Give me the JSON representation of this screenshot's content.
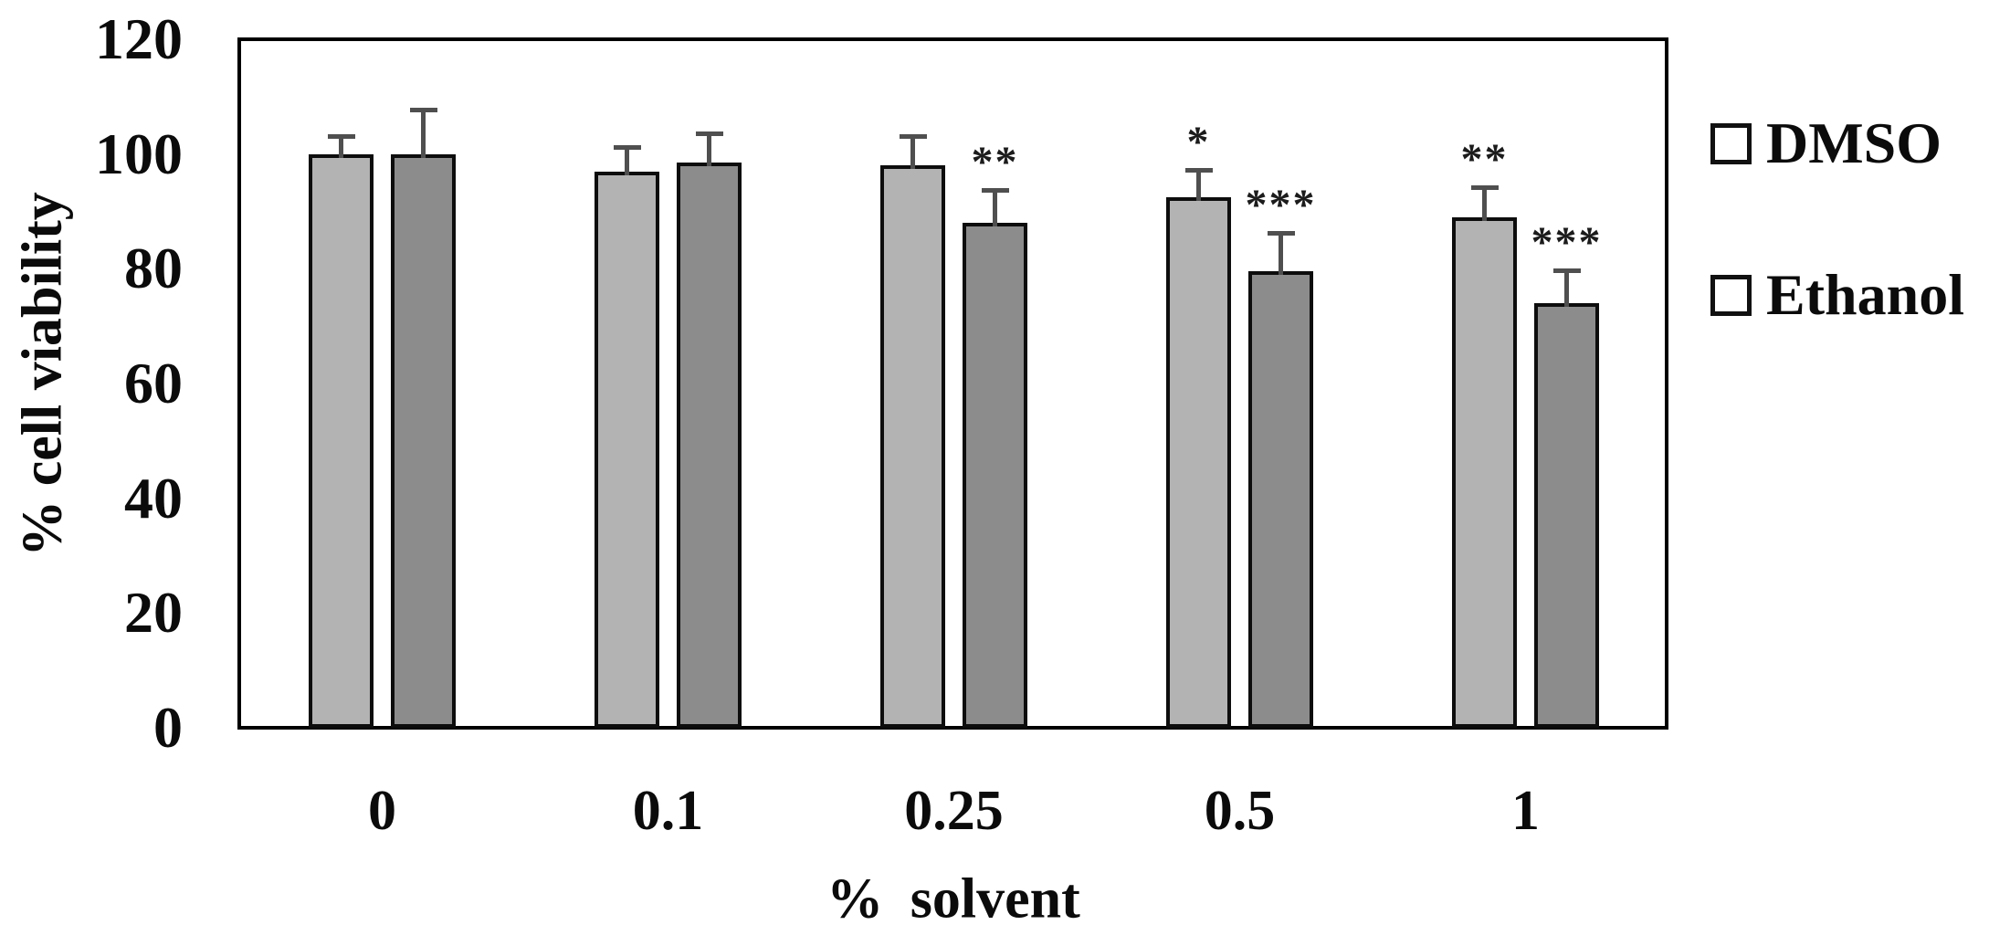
{
  "chart_data": {
    "type": "bar",
    "title": "",
    "xlabel": "% solvent",
    "ylabel": "% cell viability",
    "categories": [
      "0",
      "0.1",
      "0.25",
      "0.5",
      "1"
    ],
    "y_ticks": [
      0,
      20,
      40,
      60,
      80,
      100,
      120
    ],
    "ylim": [
      0,
      120
    ],
    "grid": false,
    "legend_position": "right",
    "error_bars": "upper",
    "series": [
      {
        "name": "DMSO",
        "color": "#b3b3b3",
        "values": [
          100,
          97,
          98,
          92.5,
          89
        ],
        "errors": [
          3.5,
          4.5,
          5.5,
          5,
          5.5
        ],
        "significance": [
          "",
          "",
          "",
          "*",
          "**"
        ]
      },
      {
        "name": "Ethanol",
        "color": "#8c8c8c",
        "values": [
          100,
          98.5,
          88,
          79.5,
          74
        ],
        "errors": [
          8,
          5.5,
          6,
          7,
          6
        ],
        "significance": [
          "",
          "",
          "**",
          "***",
          "***"
        ]
      }
    ]
  }
}
